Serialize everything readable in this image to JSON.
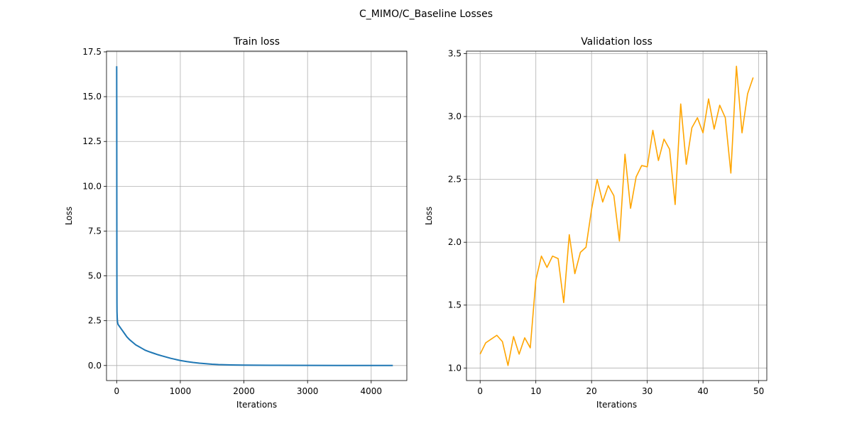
{
  "figure_title": "C_MIMO/C_Baseline Losses",
  "chart_data": [
    {
      "type": "line",
      "title": "Train loss",
      "xlabel": "Iterations",
      "ylabel": "Loss",
      "xlim": [
        -160,
        4560
      ],
      "ylim": [
        -0.84,
        17.54
      ],
      "xticks": [
        0,
        1000,
        2000,
        3000,
        4000
      ],
      "xtick_labels": [
        "0",
        "1000",
        "2000",
        "3000",
        "4000"
      ],
      "yticks": [
        0,
        2.5,
        5,
        7.5,
        10,
        12.5,
        15,
        17.5
      ],
      "ytick_labels": [
        "0.0",
        "2.5",
        "5.0",
        "7.5",
        "10.0",
        "12.5",
        "15.0",
        "17.5"
      ],
      "grid": true,
      "color": "#1f77b4",
      "series": [
        {
          "name": "train",
          "x": [
            0,
            1,
            2,
            3,
            4,
            5,
            8,
            12,
            20,
            40,
            60,
            80,
            100,
            130,
            160,
            200,
            250,
            300,
            350,
            400,
            450,
            500,
            550,
            600,
            650,
            700,
            750,
            800,
            850,
            900,
            950,
            1000,
            1100,
            1200,
            1300,
            1400,
            1500,
            1600,
            1700,
            1800,
            2000,
            2200,
            2500,
            3000,
            3500,
            4000,
            4340
          ],
          "y": [
            16.7,
            14.0,
            9.0,
            5.5,
            3.5,
            3.0,
            2.7,
            2.45,
            2.3,
            2.2,
            2.1,
            2.0,
            1.9,
            1.75,
            1.6,
            1.45,
            1.3,
            1.15,
            1.05,
            0.95,
            0.85,
            0.78,
            0.72,
            0.66,
            0.6,
            0.55,
            0.5,
            0.45,
            0.4,
            0.36,
            0.32,
            0.28,
            0.22,
            0.17,
            0.13,
            0.1,
            0.07,
            0.05,
            0.04,
            0.03,
            0.02,
            0.015,
            0.01,
            0.005,
            0.003,
            0.002,
            0.002
          ]
        }
      ]
    },
    {
      "type": "line",
      "title": "Validation loss",
      "xlabel": "Iterations",
      "ylabel": "Loss",
      "xlim": [
        -2.45,
        51.45
      ],
      "ylim": [
        0.9,
        3.52
      ],
      "xticks": [
        0,
        10,
        20,
        30,
        40,
        50
      ],
      "xtick_labels": [
        "0",
        "10",
        "20",
        "30",
        "40",
        "50"
      ],
      "yticks": [
        1.0,
        1.5,
        2.0,
        2.5,
        3.0,
        3.5
      ],
      "ytick_labels": [
        "1.0",
        "1.5",
        "2.0",
        "2.5",
        "3.0",
        "3.5"
      ],
      "grid": true,
      "color": "#ffa500",
      "series": [
        {
          "name": "validation",
          "x": [
            0,
            1,
            2,
            3,
            4,
            5,
            6,
            7,
            8,
            9,
            10,
            11,
            12,
            13,
            14,
            15,
            16,
            17,
            18,
            19,
            20,
            21,
            22,
            23,
            24,
            25,
            26,
            27,
            28,
            29,
            30,
            31,
            32,
            33,
            34,
            35,
            36,
            37,
            38,
            39,
            40,
            41,
            42,
            43,
            44,
            45,
            46,
            47,
            48,
            49
          ],
          "y": [
            1.11,
            1.2,
            1.23,
            1.26,
            1.21,
            1.02,
            1.25,
            1.11,
            1.24,
            1.16,
            1.7,
            1.89,
            1.8,
            1.89,
            1.87,
            1.52,
            2.06,
            1.75,
            1.92,
            1.96,
            2.26,
            2.5,
            2.32,
            2.45,
            2.37,
            2.01,
            2.7,
            2.27,
            2.52,
            2.61,
            2.6,
            2.89,
            2.65,
            2.82,
            2.74,
            2.3,
            3.1,
            2.62,
            2.91,
            2.99,
            2.87,
            3.14,
            2.9,
            3.09,
            2.99,
            2.55,
            3.4,
            2.87,
            3.18,
            3.31
          ]
        }
      ]
    }
  ]
}
